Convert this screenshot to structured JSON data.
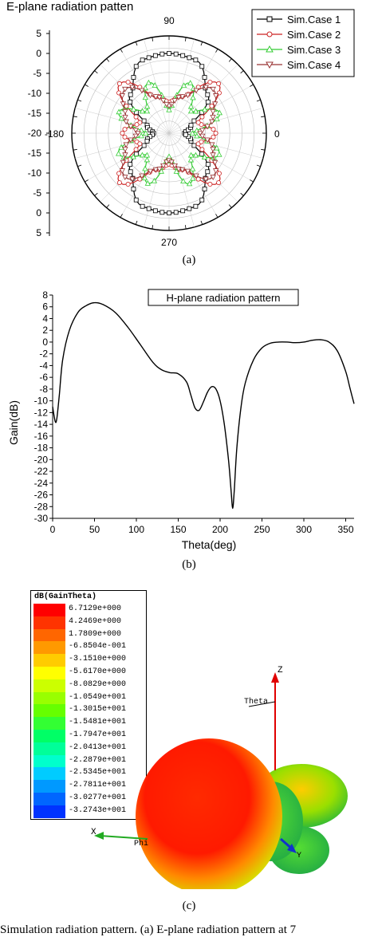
{
  "panel_a": {
    "title": "E-plane radiation patten",
    "caption": "(a)",
    "angle_labels": [
      "90",
      "0",
      "-180",
      "270"
    ],
    "radial_labels_top": [
      "5",
      "0",
      "-5",
      "-10",
      "-15",
      "-20"
    ],
    "radial_labels_bottom": [
      "-15",
      "-10",
      "-5",
      "0",
      "5"
    ],
    "legend": [
      "Sim.Case 1",
      "Sim.Case 2",
      "Sim.Case 3",
      "Sim.Case 4"
    ],
    "colors": [
      "#000000",
      "#cc2222",
      "#33cc33",
      "#993333"
    ]
  },
  "panel_b": {
    "legend_title": "H-plane radiation pattern",
    "xlabel": "Theta(deg)",
    "ylabel": "Gain(dB)",
    "caption": "(b)",
    "xticks": [
      "0",
      "50",
      "100",
      "150",
      "200",
      "250",
      "300",
      "350"
    ],
    "yticks": [
      "8",
      "6",
      "4",
      "2",
      "0",
      "-2",
      "-4",
      "-6",
      "-8",
      "-10",
      "-12",
      "-14",
      "-16",
      "-18",
      "-20",
      "-22",
      "-24",
      "-26",
      "-28",
      "-30"
    ]
  },
  "panel_c": {
    "legend_title": "dB(GainTheta)",
    "scale_values": [
      "6.7129e+000",
      "4.2469e+000",
      "1.7809e+000",
      "-6.8504e-001",
      "-3.1510e+000",
      "-5.6170e+000",
      "-8.0829e+000",
      "-1.0549e+001",
      "-1.3015e+001",
      "-1.5481e+001",
      "-1.7947e+001",
      "-2.0413e+001",
      "-2.2879e+001",
      "-2.5345e+001",
      "-2.7811e+001",
      "-3.0277e+001",
      "-3.2743e+001"
    ],
    "scale_colors": [
      "#ff0000",
      "#ff3300",
      "#ff6600",
      "#ff9900",
      "#ffcc00",
      "#ffff00",
      "#ccff00",
      "#99ff00",
      "#66ff00",
      "#33ff33",
      "#00ff66",
      "#00ff99",
      "#00ffcc",
      "#00ccff",
      "#0099ff",
      "#0066ff",
      "#0033ff"
    ],
    "axis_z": "Z",
    "axis_theta": "Theta",
    "axis_x": "X",
    "axis_phi": "Phi",
    "axis_y": "Y",
    "caption": "(c)"
  },
  "footer_text": "Simulation radiation pattern. (a) E-plane radiation pattern at 7",
  "chart_data": [
    {
      "type": "line",
      "polar": true,
      "title": "E-plane radiation patten",
      "angle_ticks": [
        0,
        90,
        180,
        270
      ],
      "r_ticks": [
        -20,
        -15,
        -10,
        -5,
        0,
        5
      ],
      "series": [
        {
          "name": "Sim.Case 1",
          "theta": [
            0,
            20,
            45,
            70,
            90,
            110,
            135,
            160,
            180,
            200,
            225,
            250,
            270,
            290,
            315,
            340,
            360
          ],
          "values": [
            -16,
            -14,
            -6,
            0,
            0.5,
            0,
            -6,
            -14,
            -16,
            -14,
            -6,
            0,
            0.5,
            0,
            -6,
            -14,
            -16
          ]
        },
        {
          "name": "Sim.Case 2",
          "theta": [
            0,
            20,
            45,
            70,
            90,
            110,
            135,
            160,
            180,
            200,
            225,
            250,
            270,
            290,
            315,
            340,
            360
          ],
          "values": [
            -8,
            -12,
            -2,
            -10,
            -12,
            -10,
            -2,
            -12,
            -8,
            -12,
            -2,
            -10,
            -12,
            -10,
            -2,
            -12,
            -8
          ]
        },
        {
          "name": "Sim.Case 3",
          "theta": [
            0,
            22,
            45,
            67,
            90,
            112,
            135,
            157,
            180,
            202,
            225,
            247,
            270,
            292,
            315,
            337,
            360
          ],
          "values": [
            -14,
            -6,
            -12,
            -6,
            -14,
            -6,
            -12,
            -6,
            -14,
            -6,
            -12,
            -6,
            -14,
            -6,
            -12,
            -6,
            -14
          ]
        },
        {
          "name": "Sim.Case 4",
          "theta": [
            0,
            20,
            45,
            70,
            90,
            110,
            135,
            160,
            180,
            200,
            225,
            250,
            270,
            290,
            315,
            340,
            360
          ],
          "values": [
            -12,
            -8,
            -4,
            -10,
            -13,
            -10,
            -4,
            -8,
            -12,
            -8,
            -4,
            -10,
            -13,
            -10,
            -4,
            -8,
            -12
          ]
        }
      ]
    },
    {
      "type": "line",
      "title": "H-plane radiation pattern",
      "xlabel": "Theta(deg)",
      "ylabel": "Gain(dB)",
      "xlim": [
        0,
        360
      ],
      "ylim": [
        -30,
        8
      ],
      "series": [
        {
          "x": [
            0,
            3,
            5,
            8,
            12,
            20,
            30,
            40,
            50,
            60,
            75,
            90,
            105,
            120,
            130,
            140,
            150,
            160,
            165,
            170,
            175,
            180,
            185,
            190,
            195,
            200,
            205,
            210,
            213,
            215,
            217,
            220,
            225,
            230,
            240,
            250,
            260,
            270,
            280,
            290,
            300,
            310,
            320,
            330,
            340,
            350,
            355,
            360
          ],
          "values": [
            -11,
            -13.5,
            -13,
            -9,
            -3,
            2,
            5,
            6.2,
            6.7,
            6.4,
            5,
            2.5,
            -0.5,
            -3.5,
            -4.7,
            -5.2,
            -5.4,
            -6.8,
            -9,
            -11.2,
            -11.6,
            -10.2,
            -8.5,
            -7.6,
            -8,
            -10,
            -14,
            -20,
            -25,
            -28.3,
            -25,
            -18,
            -11,
            -7,
            -3,
            -1,
            -0.2,
            0,
            0,
            -0.1,
            0,
            0.3,
            0.4,
            0,
            -1.5,
            -5,
            -7.8,
            -10.5
          ]
        }
      ]
    }
  ]
}
